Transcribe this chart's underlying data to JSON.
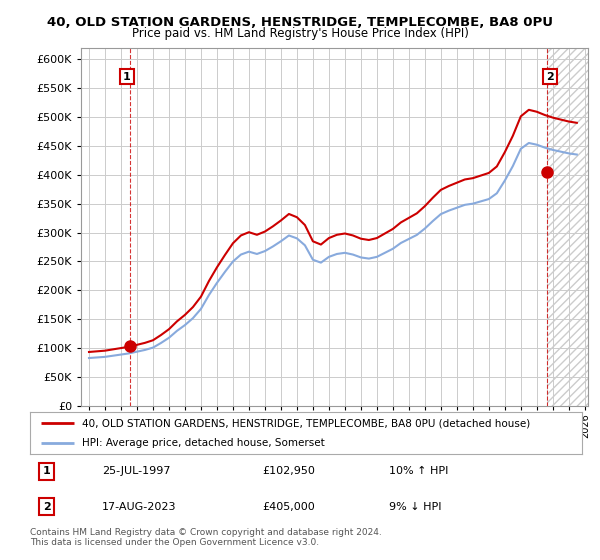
{
  "title1": "40, OLD STATION GARDENS, HENSTRIDGE, TEMPLECOMBE, BA8 0PU",
  "title2": "Price paid vs. HM Land Registry's House Price Index (HPI)",
  "sale1_date": "25-JUL-1997",
  "sale1_price": 102950,
  "sale1_hpi_pct": "10% ↑ HPI",
  "sale2_date": "17-AUG-2023",
  "sale2_price": 405000,
  "sale2_hpi_pct": "9% ↓ HPI",
  "legend1": "40, OLD STATION GARDENS, HENSTRIDGE, TEMPLECOMBE, BA8 0PU (detached house)",
  "legend2": "HPI: Average price, detached house, Somerset",
  "footnote": "Contains HM Land Registry data © Crown copyright and database right 2024.\nThis data is licensed under the Open Government Licence v3.0.",
  "line_red": "#cc0000",
  "line_blue": "#88aadd",
  "bg_color": "#ffffff",
  "grid_color": "#cccccc",
  "sale1_x": 1997.57,
  "sale2_x": 2023.63,
  "ylim": [
    0,
    620000
  ],
  "xlim": [
    1994.5,
    2026.2
  ]
}
